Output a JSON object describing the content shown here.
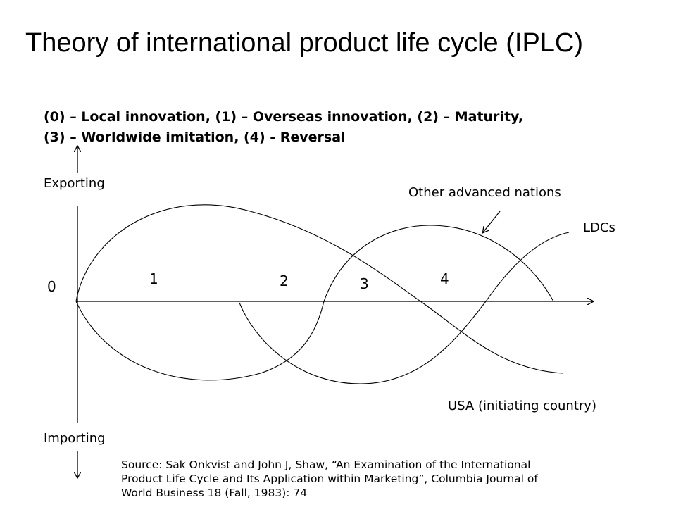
{
  "title": "Theory of international product life cycle (IPLC)",
  "legend": {
    "line1": "(0) – Local innovation, (1) – Overseas innovation, (2) – Maturity,",
    "line2": "(3) – Worldwide imitation, (4) - Reversal"
  },
  "axis": {
    "top_label": "Exporting",
    "bottom_label": "Importing"
  },
  "phases": [
    "0",
    "1",
    "2",
    "3",
    "4"
  ],
  "curves": {
    "other_advanced": "Other advanced nations",
    "ldcs": "LDCs",
    "usa": "USA (initiating country)"
  },
  "source": {
    "line1": "Source: Sak Onkvist and John J, Shaw, “An Examination of the International",
    "line2": "Product Life Cycle and Its Application within Marketing”, Columbia Journal of",
    "line3": "World Business 18 (Fall, 1983): 74"
  }
}
